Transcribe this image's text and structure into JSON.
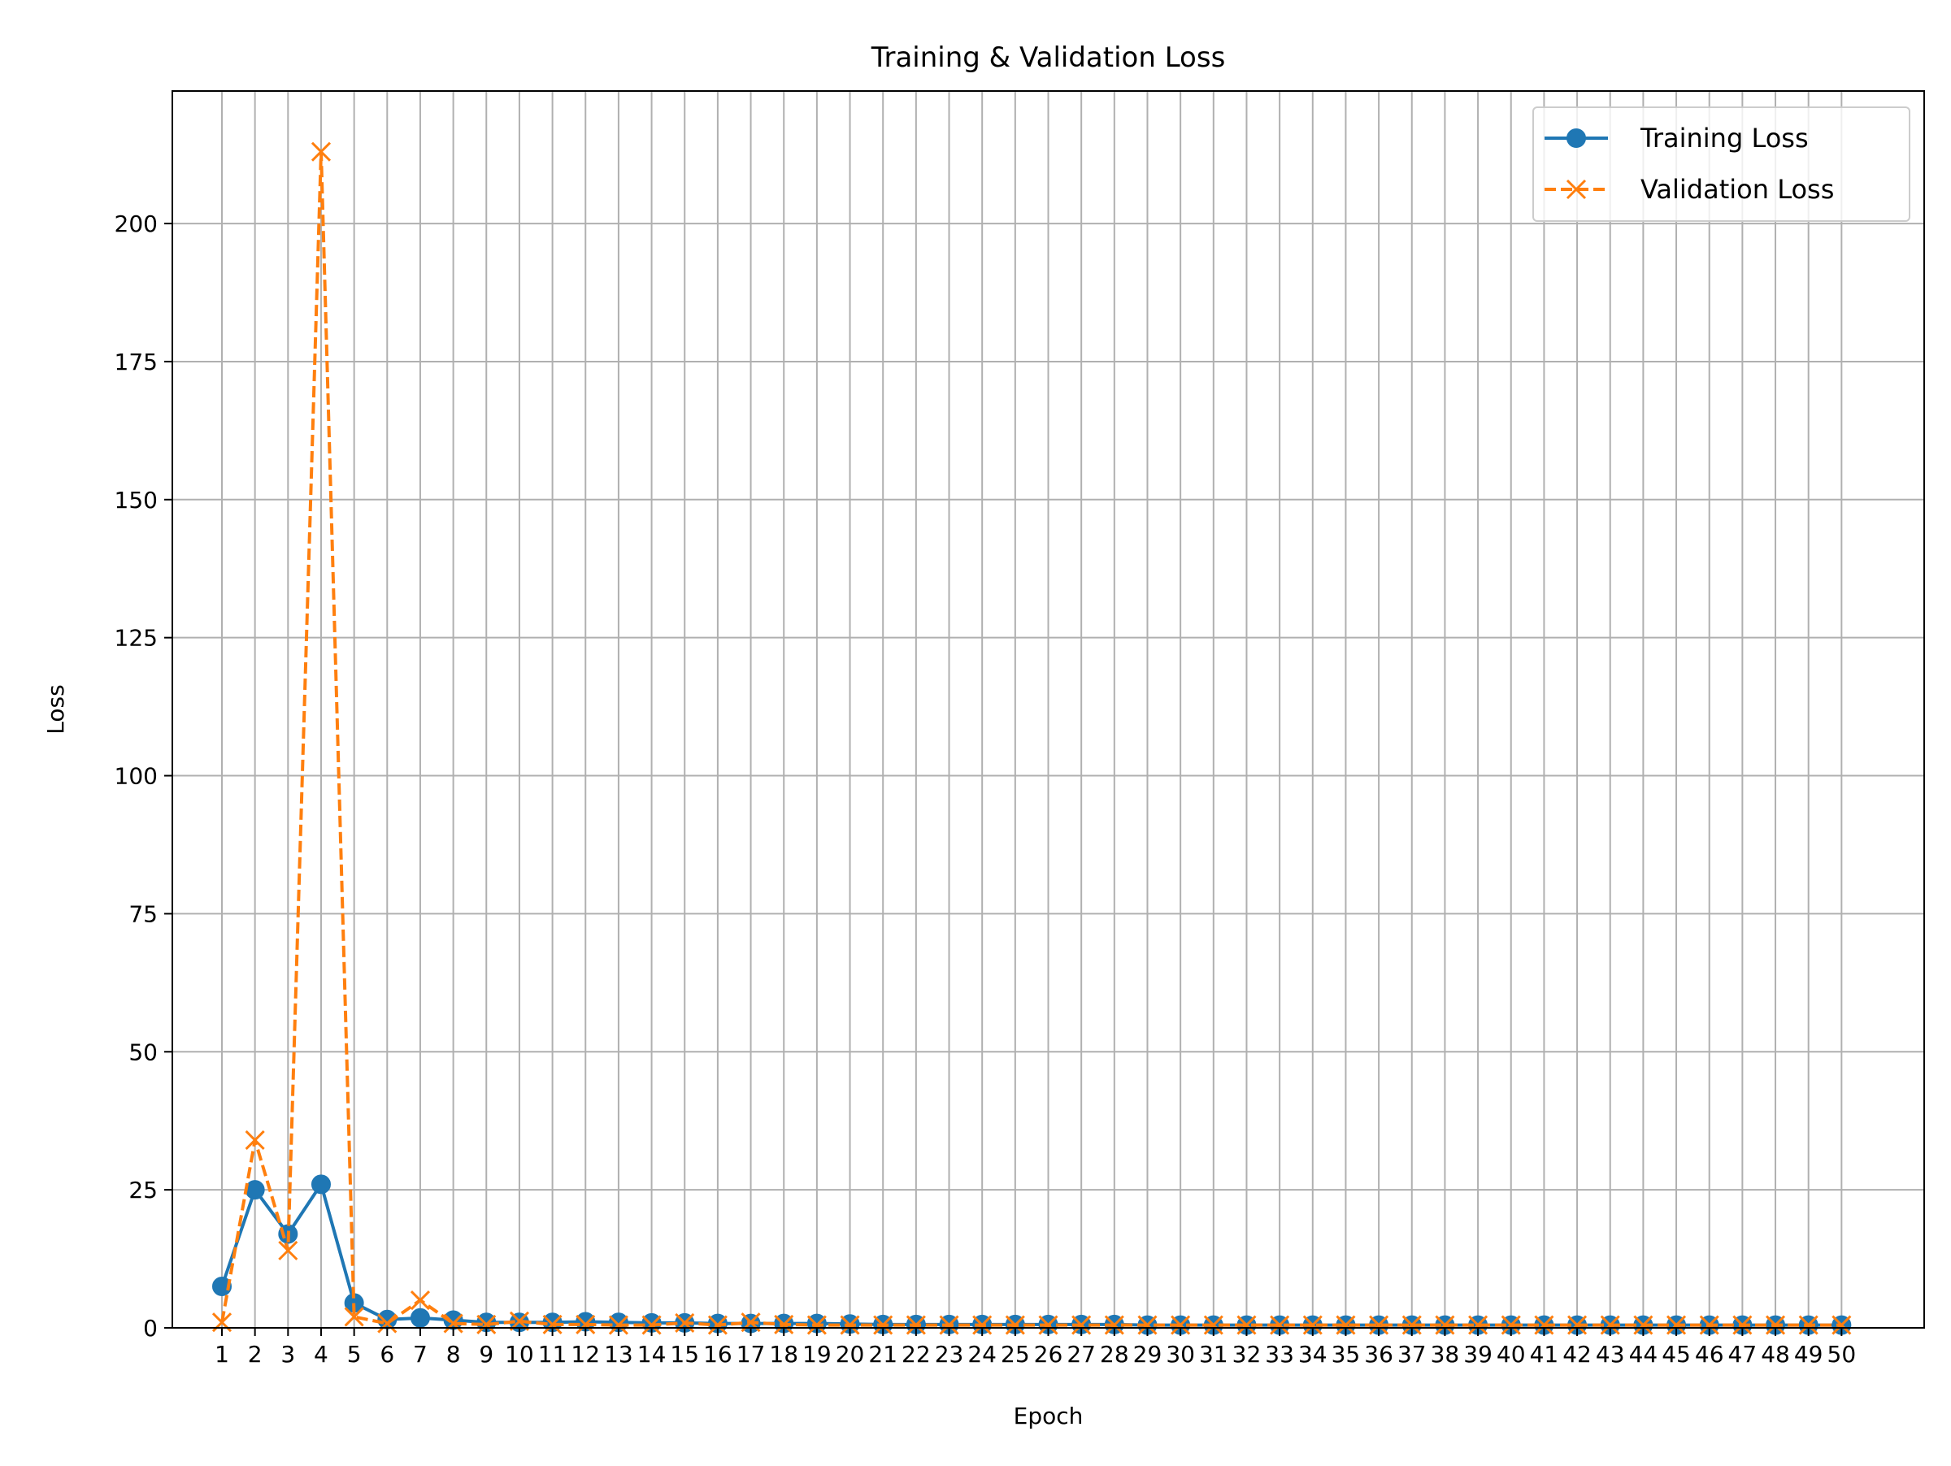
{
  "chart_data": {
    "type": "line",
    "title": "Training & Validation Loss",
    "xlabel": "Epoch",
    "ylabel": "Loss",
    "x": [
      1,
      2,
      3,
      4,
      5,
      6,
      7,
      8,
      9,
      10,
      11,
      12,
      13,
      14,
      15,
      16,
      17,
      18,
      19,
      20,
      21,
      22,
      23,
      24,
      25,
      26,
      27,
      28,
      29,
      30,
      31,
      32,
      33,
      34,
      35,
      36,
      37,
      38,
      39,
      40,
      41,
      42,
      43,
      44,
      45,
      46,
      47,
      48,
      49,
      50
    ],
    "xlim": [
      -0.5,
      52.5
    ],
    "ylim": [
      0,
      224
    ],
    "yticks": [
      0,
      25,
      50,
      75,
      100,
      125,
      150,
      175,
      200
    ],
    "grid": true,
    "legend_position": "top-right",
    "series": [
      {
        "name": "Training Loss",
        "color": "#1f77b4",
        "line_style": "solid",
        "marker": "circle",
        "values": [
          7.5,
          25.0,
          17.0,
          26.0,
          4.5,
          1.5,
          1.8,
          1.4,
          1.0,
          1.0,
          1.0,
          1.1,
          1.0,
          0.9,
          0.9,
          0.8,
          0.8,
          0.8,
          0.8,
          0.7,
          0.6,
          0.6,
          0.6,
          0.6,
          0.6,
          0.6,
          0.6,
          0.6,
          0.5,
          0.5,
          0.5,
          0.5,
          0.5,
          0.5,
          0.5,
          0.5,
          0.5,
          0.5,
          0.5,
          0.5,
          0.5,
          0.5,
          0.5,
          0.5,
          0.5,
          0.5,
          0.5,
          0.5,
          0.5,
          0.5
        ]
      },
      {
        "name": "Validation Loss",
        "color": "#ff7f0e",
        "line_style": "dashed",
        "marker": "x",
        "values": [
          1.0,
          34.0,
          14.0,
          213.0,
          2.0,
          0.8,
          5.0,
          0.8,
          0.6,
          1.2,
          0.6,
          0.6,
          0.5,
          0.5,
          0.9,
          0.5,
          1.0,
          0.6,
          0.5,
          0.5,
          0.5,
          0.5,
          0.5,
          0.5,
          0.5,
          0.5,
          0.5,
          0.5,
          0.5,
          0.5,
          0.5,
          0.5,
          0.5,
          0.5,
          0.5,
          0.5,
          0.5,
          0.5,
          0.5,
          0.5,
          0.5,
          0.5,
          0.5,
          0.5,
          0.5,
          0.5,
          0.5,
          0.5,
          0.5,
          0.5
        ]
      }
    ]
  }
}
